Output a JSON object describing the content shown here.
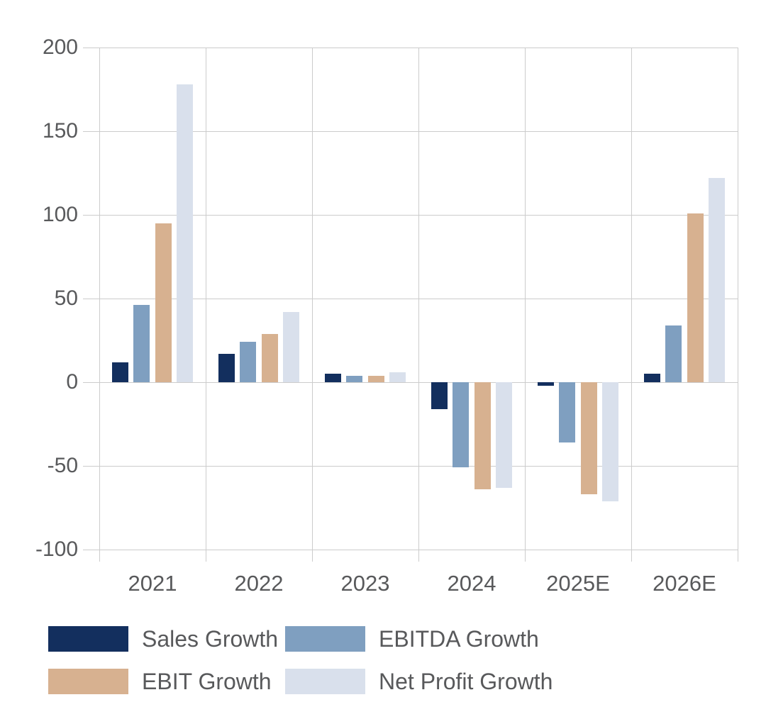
{
  "chart_data": {
    "type": "bar",
    "title": "",
    "xlabel": "",
    "ylabel": "",
    "categories": [
      "2021",
      "2022",
      "2023",
      "2024",
      "2025E",
      "2026E"
    ],
    "series": [
      {
        "name": "Sales Growth",
        "color": "#132f5e",
        "values": [
          12,
          17,
          5,
          -16,
          -2,
          5
        ]
      },
      {
        "name": "EBITDA Growth",
        "color": "#7f9fc0",
        "values": [
          46,
          24,
          4,
          -51,
          -36,
          34
        ]
      },
      {
        "name": "EBIT Growth",
        "color": "#d7b190",
        "values": [
          95,
          29,
          4,
          -64,
          -67,
          101
        ]
      },
      {
        "name": "Net Profit Growth",
        "color": "#d9e0ec",
        "values": [
          178,
          42,
          6,
          -63,
          -71,
          122
        ]
      }
    ],
    "ylim": [
      -100,
      200
    ],
    "yticks": [
      200,
      150,
      100,
      50,
      0,
      -50,
      -100
    ],
    "grid": true,
    "legend_position": "bottom",
    "legend_rows": 2,
    "gridline_color": "#cccccc",
    "axis_text_color": "#58595b",
    "background_color": "#ffffff"
  }
}
